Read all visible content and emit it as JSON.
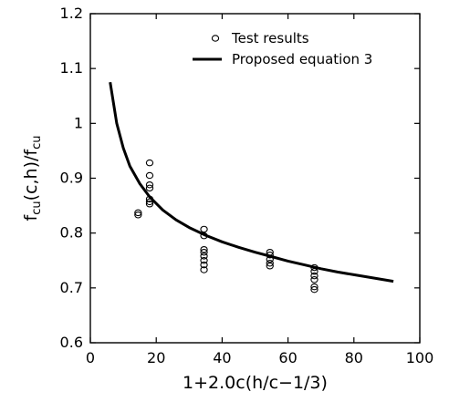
{
  "chart_data": {
    "type": "scatter",
    "xlabel": "1+2.0c(h/c−1/3)",
    "ylabel": "f_cu(c,h)/f_cu",
    "xlim": [
      0,
      100
    ],
    "ylim": [
      0.6,
      1.2
    ],
    "xticks": [
      "0",
      "20",
      "40",
      "60",
      "80",
      "100"
    ],
    "yticks": [
      "0.6",
      "0.7",
      "0.8",
      "0.9",
      "1",
      "1.1",
      "1.2"
    ],
    "legend_position": "top-right",
    "series": [
      {
        "name": "Test results",
        "marker": "open-circle",
        "points": [
          [
            14.5,
            0.833
          ],
          [
            14.5,
            0.837
          ],
          [
            18.0,
            0.853
          ],
          [
            18.0,
            0.857
          ],
          [
            18.0,
            0.862
          ],
          [
            18.0,
            0.882
          ],
          [
            18.0,
            0.888
          ],
          [
            18.0,
            0.905
          ],
          [
            18.0,
            0.928
          ],
          [
            34.5,
            0.733
          ],
          [
            34.5,
            0.742
          ],
          [
            34.5,
            0.75
          ],
          [
            34.5,
            0.758
          ],
          [
            34.5,
            0.765
          ],
          [
            34.5,
            0.77
          ],
          [
            34.5,
            0.795
          ],
          [
            34.5,
            0.807
          ],
          [
            54.5,
            0.74
          ],
          [
            54.5,
            0.745
          ],
          [
            54.5,
            0.752
          ],
          [
            54.5,
            0.76
          ],
          [
            54.5,
            0.765
          ],
          [
            68.0,
            0.697
          ],
          [
            68.0,
            0.702
          ],
          [
            68.0,
            0.715
          ],
          [
            68.0,
            0.722
          ],
          [
            68.0,
            0.73
          ],
          [
            68.0,
            0.737
          ]
        ]
      },
      {
        "name": "Proposed equation 3",
        "style": "solid-thick-line",
        "points": [
          [
            6,
            1.075
          ],
          [
            8,
            1.0
          ],
          [
            10,
            0.955
          ],
          [
            12,
            0.922
          ],
          [
            15,
            0.89
          ],
          [
            18,
            0.866
          ],
          [
            22,
            0.842
          ],
          [
            26,
            0.824
          ],
          [
            30,
            0.81
          ],
          [
            35,
            0.796
          ],
          [
            40,
            0.784
          ],
          [
            45,
            0.774
          ],
          [
            50,
            0.765
          ],
          [
            55,
            0.757
          ],
          [
            60,
            0.749
          ],
          [
            65,
            0.742
          ],
          [
            70,
            0.735
          ],
          [
            75,
            0.729
          ],
          [
            80,
            0.724
          ],
          [
            85,
            0.719
          ],
          [
            92,
            0.712
          ]
        ]
      }
    ]
  }
}
